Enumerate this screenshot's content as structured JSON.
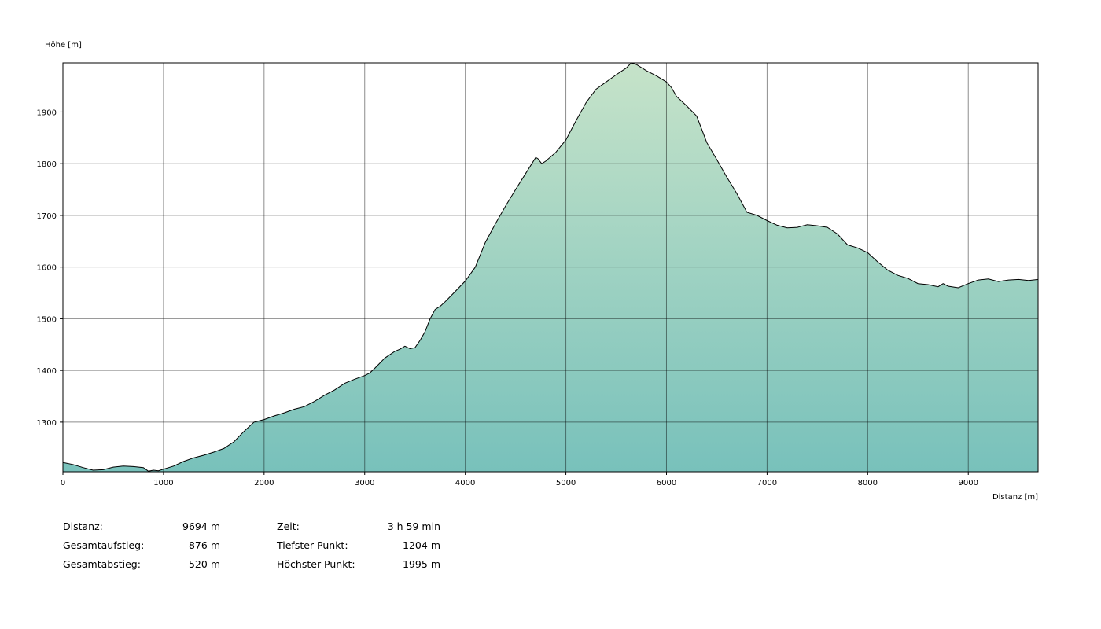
{
  "chart_data": {
    "type": "area",
    "ylabel": "Höhe [m]",
    "xlabel": "Distanz [m]",
    "xlim": [
      0,
      9694
    ],
    "ylim": [
      1204,
      1995
    ],
    "x_ticks": [
      0,
      1000,
      2000,
      3000,
      4000,
      5000,
      6000,
      7000,
      8000,
      9000
    ],
    "y_ticks": [
      1300,
      1400,
      1500,
      1600,
      1700,
      1800,
      1900
    ],
    "grid": true,
    "fill_top_color": "#c6e3c9",
    "fill_bottom_color": "#78c1bb",
    "line_color": "#000000",
    "series": [
      {
        "x": [
          0,
          100,
          200,
          300,
          400,
          500,
          600,
          700,
          800,
          850,
          900,
          950,
          1000,
          1100,
          1200,
          1300,
          1400,
          1500,
          1600,
          1700,
          1800,
          1900,
          2000,
          2100,
          2200,
          2300,
          2400,
          2500,
          2600,
          2700,
          2800,
          2900,
          3000,
          3050,
          3100,
          3200,
          3300,
          3350,
          3400,
          3450,
          3500,
          3550,
          3600,
          3650,
          3700,
          3750,
          3800,
          3900,
          4000,
          4100,
          4200,
          4300,
          4400,
          4500,
          4600,
          4700,
          4720,
          4760,
          4800,
          4900,
          5000,
          5100,
          5200,
          5300,
          5400,
          5500,
          5600,
          5650,
          5700,
          5800,
          5900,
          6000,
          6050,
          6100,
          6200,
          6300,
          6400,
          6500,
          6600,
          6700,
          6800,
          6900,
          7000,
          7100,
          7200,
          7300,
          7400,
          7500,
          7600,
          7700,
          7800,
          7900,
          8000,
          8100,
          8200,
          8300,
          8400,
          8500,
          8600,
          8700,
          8750,
          8800,
          8900,
          9000,
          9100,
          9200,
          9300,
          9400,
          9500,
          9600,
          9694
        ],
        "values": [
          1222,
          1218,
          1212,
          1207,
          1208,
          1213,
          1215,
          1214,
          1212,
          1205,
          1207,
          1206,
          1209,
          1215,
          1224,
          1231,
          1236,
          1242,
          1249,
          1262,
          1282,
          1300,
          1305,
          1312,
          1318,
          1325,
          1330,
          1340,
          1352,
          1362,
          1375,
          1383,
          1390,
          1395,
          1404,
          1424,
          1437,
          1441,
          1447,
          1442,
          1444,
          1458,
          1475,
          1500,
          1518,
          1524,
          1533,
          1553,
          1573,
          1600,
          1648,
          1684,
          1718,
          1750,
          1781,
          1812,
          1810,
          1800,
          1805,
          1822,
          1846,
          1883,
          1918,
          1944,
          1958,
          1972,
          1985,
          1995,
          1992,
          1980,
          1970,
          1958,
          1947,
          1930,
          1912,
          1892,
          1841,
          1808,
          1774,
          1742,
          1706,
          1700,
          1690,
          1681,
          1676,
          1677,
          1682,
          1680,
          1677,
          1664,
          1643,
          1637,
          1628,
          1610,
          1594,
          1584,
          1578,
          1568,
          1566,
          1562,
          1568,
          1563,
          1560,
          1568,
          1575,
          1577,
          1572,
          1575,
          1576,
          1574,
          1576
        ]
      }
    ]
  },
  "stats": {
    "distance_label": "Distanz:",
    "distance_value": "9694 m",
    "ascent_label": "Gesamtaufstieg:",
    "ascent_value": "876 m",
    "descent_label": "Gesamtabstieg:",
    "descent_value": "520 m",
    "time_label": "Zeit:",
    "time_value": "3 h 59 min",
    "lowest_label": "Tiefster Punkt:",
    "lowest_value": "1204 m",
    "highest_label": "Höchster Punkt:",
    "highest_value": "1995 m"
  }
}
